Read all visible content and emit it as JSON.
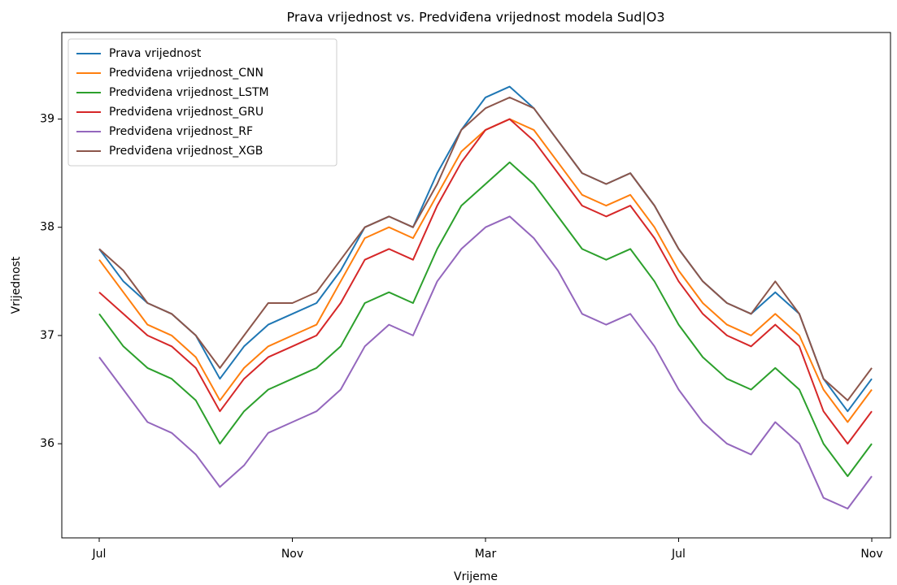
{
  "chart_data": {
    "type": "line",
    "title": "Prava vrijednost vs. Predviđena vrijednost modela Sud|O3",
    "x_label": "Vrijeme",
    "y_label": "Vrijednost",
    "categories": [
      "Jul",
      null,
      null,
      null,
      null,
      null,
      null,
      null,
      "Nov",
      null,
      null,
      null,
      null,
      null,
      null,
      null,
      "Mar",
      null,
      null,
      null,
      null,
      null,
      null,
      null,
      "Jul",
      null,
      null,
      null,
      null,
      null,
      null,
      null,
      "Nov"
    ],
    "ylim": [
      35.13,
      39.8
    ],
    "yticks": [
      36,
      37,
      38,
      39
    ],
    "grid": false,
    "legend": "upper left",
    "series": [
      {
        "name": "Prava vrijednost",
        "color": "#1f77b4",
        "values": [
          37.8,
          37.5,
          37.3,
          37.2,
          37.0,
          36.6,
          36.9,
          37.1,
          37.2,
          37.3,
          37.6,
          38.0,
          38.1,
          38.0,
          38.5,
          38.9,
          39.2,
          39.3,
          39.1,
          38.8,
          38.5,
          38.4,
          38.5,
          38.2,
          37.8,
          37.5,
          37.3,
          37.2,
          37.4,
          37.2,
          36.6,
          36.3,
          36.6
        ]
      },
      {
        "name": "Predviđena vrijednost_CNN",
        "color": "#ff7f0e",
        "values": [
          37.7,
          37.4,
          37.1,
          37.0,
          36.8,
          36.4,
          36.7,
          36.9,
          37.0,
          37.1,
          37.5,
          37.9,
          38.0,
          37.9,
          38.3,
          38.7,
          38.9,
          39.0,
          38.9,
          38.6,
          38.3,
          38.2,
          38.3,
          38.0,
          37.6,
          37.3,
          37.1,
          37.0,
          37.2,
          37.0,
          36.5,
          36.2,
          36.5
        ]
      },
      {
        "name": "Predviđena vrijednost_LSTM",
        "color": "#2ca02c",
        "values": [
          37.2,
          36.9,
          36.7,
          36.6,
          36.4,
          36.0,
          36.3,
          36.5,
          36.6,
          36.7,
          36.9,
          37.3,
          37.4,
          37.3,
          37.8,
          38.2,
          38.4,
          38.6,
          38.4,
          38.1,
          37.8,
          37.7,
          37.8,
          37.5,
          37.1,
          36.8,
          36.6,
          36.5,
          36.7,
          36.5,
          36.0,
          35.7,
          36.0
        ]
      },
      {
        "name": "Predviđena vrijednost_GRU",
        "color": "#d62728",
        "values": [
          37.4,
          37.2,
          37.0,
          36.9,
          36.7,
          36.3,
          36.6,
          36.8,
          36.9,
          37.0,
          37.3,
          37.7,
          37.8,
          37.7,
          38.2,
          38.6,
          38.9,
          39.0,
          38.8,
          38.5,
          38.2,
          38.1,
          38.2,
          37.9,
          37.5,
          37.2,
          37.0,
          36.9,
          37.1,
          36.9,
          36.3,
          36.0,
          36.3
        ]
      },
      {
        "name": "Predviđena vrijednost_RF",
        "color": "#9467bd",
        "values": [
          36.8,
          36.5,
          36.2,
          36.1,
          35.9,
          35.6,
          35.8,
          36.1,
          36.2,
          36.3,
          36.5,
          36.9,
          37.1,
          37.0,
          37.5,
          37.8,
          38.0,
          38.1,
          37.9,
          37.6,
          37.2,
          37.1,
          37.2,
          36.9,
          36.5,
          36.2,
          36.0,
          35.9,
          36.2,
          36.0,
          35.5,
          35.4,
          35.7
        ]
      },
      {
        "name": "Predviđena vrijednost_XGB",
        "color": "#8c564b",
        "values": [
          37.8,
          37.6,
          37.3,
          37.2,
          37.0,
          36.7,
          37.0,
          37.3,
          37.3,
          37.4,
          37.7,
          38.0,
          38.1,
          38.0,
          38.4,
          38.9,
          39.1,
          39.2,
          39.1,
          38.8,
          38.5,
          38.4,
          38.5,
          38.2,
          37.8,
          37.5,
          37.3,
          37.2,
          37.5,
          37.2,
          36.6,
          36.4,
          36.7
        ]
      }
    ]
  }
}
